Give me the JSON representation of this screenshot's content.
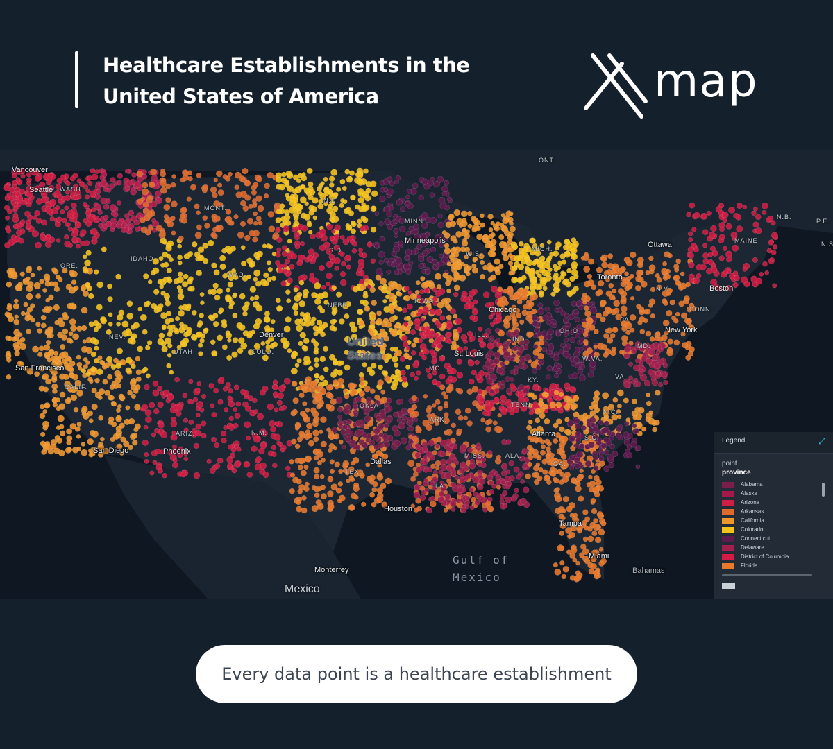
{
  "header": {
    "title_line1": "Healthcare Establishments in the",
    "title_line2": "United States of America",
    "logo_text": "map",
    "logo_icon": "x-mark-logo-icon"
  },
  "map": {
    "cities": [
      "Vancouver",
      "Seattle",
      "San Francisco",
      "San Diego",
      "Phoenix",
      "Denver",
      "Dallas",
      "Houston",
      "Monterrey",
      "Minneapolis",
      "Chicago",
      "St. Louis",
      "Atlanta",
      "Tampa",
      "Miami",
      "Toronto",
      "Ottawa",
      "Boston",
      "New York",
      "Bahamas"
    ],
    "state_abbrevs": [
      "WASH.",
      "ORE.",
      "IDAHO",
      "MONT.",
      "WYO.",
      "N.D.",
      "S.D.",
      "NEBR.",
      "IOWA",
      "MINN.",
      "WIS.",
      "MICH.",
      "ILL.",
      "IND.",
      "OHIO",
      "PA.",
      "N.Y.",
      "CONN.",
      "MAINE",
      "N.B.",
      "P.E.",
      "N.S",
      "NEV.",
      "CALIF.",
      "UTAH",
      "COLO.",
      "ARIZ.",
      "N.M.",
      "OKLA.",
      "TEX.",
      "ARK.",
      "LA.",
      "MISS.",
      "ALA.",
      "GA.",
      "S.C.",
      "N.C.",
      "TENN.",
      "KY.",
      "W.VA.",
      "VA.",
      "MD.",
      "MO.",
      "ONT."
    ],
    "country_label": "United\nStates",
    "mexico_label": "Mexico",
    "gulf_label_line1": "Gulf of",
    "gulf_label_line2": "Mexico"
  },
  "legend": {
    "title": "Legend",
    "layer": "point",
    "field": "province",
    "items": [
      {
        "label": "Alabama",
        "color": "#7a1f4a"
      },
      {
        "label": "Alaska",
        "color": "#a31a4a"
      },
      {
        "label": "Arizona",
        "color": "#d01d44"
      },
      {
        "label": "Arkansas",
        "color": "#e06a2c"
      },
      {
        "label": "California",
        "color": "#f0962c"
      },
      {
        "label": "Colorado",
        "color": "#f5c21c"
      },
      {
        "label": "Connecticut",
        "color": "#5e1c4e"
      },
      {
        "label": "Delaware",
        "color": "#a3204c"
      },
      {
        "label": "District of Columbia",
        "color": "#d61a46"
      },
      {
        "label": "Florida",
        "color": "#e8782a"
      }
    ]
  },
  "caption": "Every data point is a healthcare establishment",
  "colors": {
    "background": "#15202d",
    "map_background": "#0f1822"
  }
}
